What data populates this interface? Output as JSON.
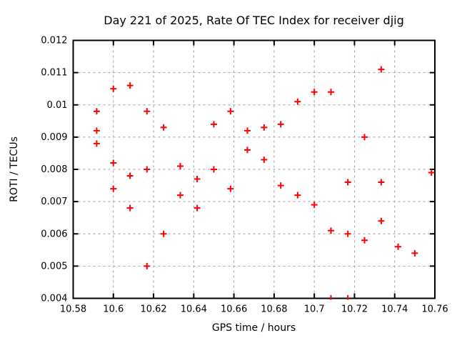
{
  "chart_data": {
    "type": "scatter",
    "title": "Day 221 of 2025, Rate Of TEC Index for receiver djig",
    "xlabel": "GPS time / hours",
    "ylabel": "ROTI / TECUs",
    "xlim": [
      10.58,
      10.76
    ],
    "ylim": [
      0.004,
      0.012
    ],
    "xtick_values": [
      10.58,
      10.6,
      10.62,
      10.64,
      10.66,
      10.68,
      10.7,
      10.72,
      10.74,
      10.76
    ],
    "xtick_labels": [
      "10.58",
      "10.6",
      "10.62",
      "10.64",
      "10.66",
      "10.68",
      "10.7",
      "10.72",
      "10.74",
      "10.76"
    ],
    "ytick_values": [
      0.004,
      0.005,
      0.006,
      0.007,
      0.008,
      0.009,
      0.01,
      0.011,
      0.012
    ],
    "ytick_labels": [
      "0.004",
      "0.005",
      "0.006",
      "0.007",
      "0.008",
      "0.009",
      "0.01",
      "0.011",
      "0.012"
    ],
    "grid": true,
    "legend": "none",
    "grid_color": "#a0a0a0",
    "axis_color": "#000000",
    "marker": {
      "shape": "plus",
      "color": "#ff0000",
      "size": 9
    },
    "points": [
      [
        10.5917,
        0.0098
      ],
      [
        10.5917,
        0.0092
      ],
      [
        10.5917,
        0.0088
      ],
      [
        10.6,
        0.0105
      ],
      [
        10.6,
        0.0082
      ],
      [
        10.6,
        0.0074
      ],
      [
        10.6083,
        0.0106
      ],
      [
        10.6083,
        0.0078
      ],
      [
        10.6083,
        0.0068
      ],
      [
        10.6167,
        0.0098
      ],
      [
        10.6167,
        0.008
      ],
      [
        10.6167,
        0.005
      ],
      [
        10.625,
        0.0093
      ],
      [
        10.625,
        0.006
      ],
      [
        10.6333,
        0.0081
      ],
      [
        10.6333,
        0.0072
      ],
      [
        10.6417,
        0.0077
      ],
      [
        10.6417,
        0.0068
      ],
      [
        10.65,
        0.0094
      ],
      [
        10.65,
        0.008
      ],
      [
        10.6583,
        0.0098
      ],
      [
        10.6583,
        0.0074
      ],
      [
        10.6667,
        0.0092
      ],
      [
        10.6667,
        0.0086
      ],
      [
        10.675,
        0.0093
      ],
      [
        10.675,
        0.0083
      ],
      [
        10.6833,
        0.0094
      ],
      [
        10.6833,
        0.0075
      ],
      [
        10.6917,
        0.0101
      ],
      [
        10.6917,
        0.0072
      ],
      [
        10.7,
        0.0104
      ],
      [
        10.7,
        0.0069
      ],
      [
        10.7083,
        0.0104
      ],
      [
        10.7083,
        0.0061
      ],
      [
        10.7083,
        0.004
      ],
      [
        10.7167,
        0.0076
      ],
      [
        10.7167,
        0.006
      ],
      [
        10.7167,
        0.004
      ],
      [
        10.725,
        0.009
      ],
      [
        10.725,
        0.0058
      ],
      [
        10.7333,
        0.0111
      ],
      [
        10.7333,
        0.0076
      ],
      [
        10.7333,
        0.0064
      ],
      [
        10.7417,
        0.0056
      ],
      [
        10.75,
        0.0054
      ],
      [
        10.7583,
        0.0079
      ]
    ]
  }
}
